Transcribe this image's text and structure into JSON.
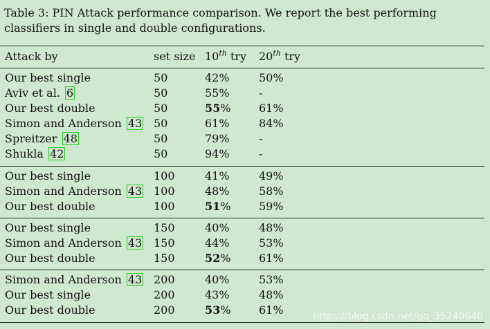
{
  "caption": "Table 3: PIN Attack performance comparison. We report the best performing classifiers in single and double configurations.",
  "headers": {
    "attack": "Attack by",
    "size": "set size",
    "try10_num": "10",
    "try10_sup": "th",
    "try10_word": " try",
    "try20_num": "20",
    "try20_sup": "th",
    "try20_word": " try"
  },
  "rows": [
    {
      "name": "Our best single",
      "ref": "",
      "size": "50",
      "t10": "42",
      "t10_bold": false,
      "t20": "50%"
    },
    {
      "name": "Aviv et al.",
      "ref": "6",
      "size": "50",
      "t10": "55",
      "t10_bold": false,
      "t20": "-"
    },
    {
      "name": "Our best double",
      "ref": "",
      "size": "50",
      "t10": "55",
      "t10_bold": true,
      "t20": "61%"
    },
    {
      "name": "Simon and Anderson",
      "ref": "43",
      "size": "50",
      "t10": "61",
      "t10_bold": false,
      "t20": "84%"
    },
    {
      "name": "Spreitzer",
      "ref": "48",
      "size": "50",
      "t10": "79",
      "t10_bold": false,
      "t20": "-"
    },
    {
      "name": "Shukla",
      "ref": "42",
      "size": "50",
      "t10": "94",
      "t10_bold": false,
      "t20": "-"
    },
    {
      "name": "Our best single",
      "ref": "",
      "size": "100",
      "t10": "41",
      "t10_bold": false,
      "t20": "49%"
    },
    {
      "name": "Simon and Anderson",
      "ref": "43",
      "size": "100",
      "t10": "48",
      "t10_bold": false,
      "t20": "58%"
    },
    {
      "name": "Our best double",
      "ref": "",
      "size": "100",
      "t10": "51",
      "t10_bold": true,
      "t20": "59%"
    },
    {
      "name": "Our best single",
      "ref": "",
      "size": "150",
      "t10": "40",
      "t10_bold": false,
      "t20": "48%"
    },
    {
      "name": "Simon and Anderson",
      "ref": "43",
      "size": "150",
      "t10": "44",
      "t10_bold": false,
      "t20": "53%"
    },
    {
      "name": "Our best double",
      "ref": "",
      "size": "150",
      "t10": "52",
      "t10_bold": true,
      "t20": "61%"
    },
    {
      "name": "Simon and Anderson",
      "ref": "43",
      "size": "200",
      "t10": "40",
      "t10_bold": false,
      "t20": "53%"
    },
    {
      "name": "Our best single",
      "ref": "",
      "size": "200",
      "t10": "43",
      "t10_bold": false,
      "t20": "48%"
    },
    {
      "name": "Our best double",
      "ref": "",
      "size": "200",
      "t10": "53",
      "t10_bold": true,
      "t20": "61%"
    }
  ],
  "percent_sign": "%",
  "watermark": "https://blog.csdn.net/qq_35240640"
}
